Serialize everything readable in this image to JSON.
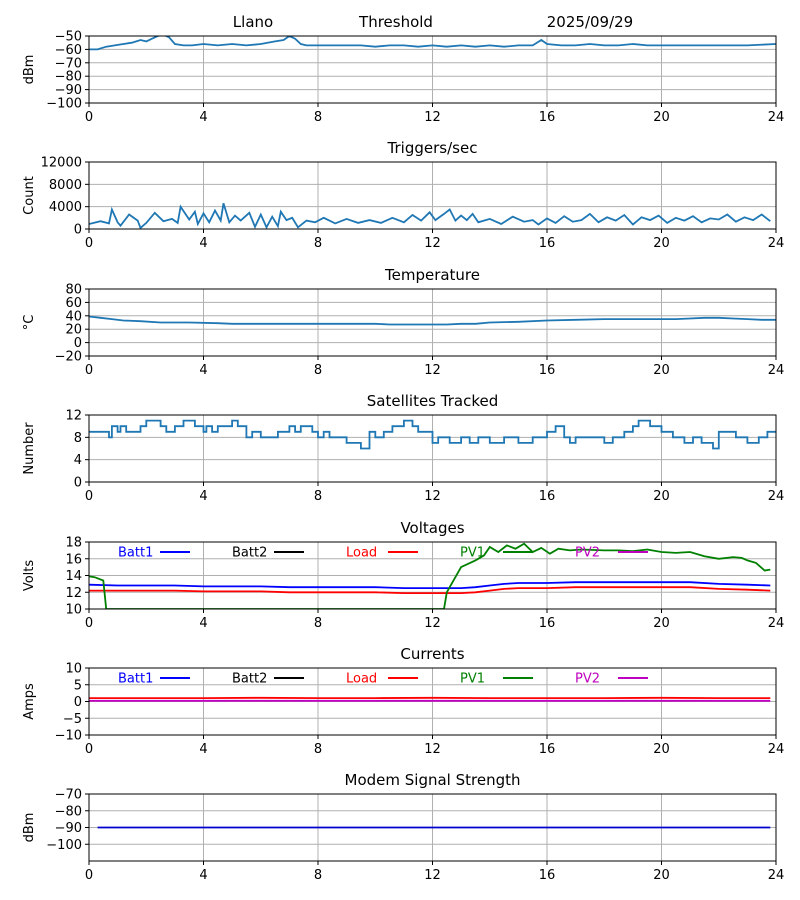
{
  "header": {
    "left": "Llano",
    "center": "Threshold",
    "right": "2025/09/29"
  },
  "x_ticks": [
    "0",
    "4",
    "8",
    "12",
    "16",
    "20",
    "24"
  ],
  "chart_data": [
    {
      "type": "line",
      "title": "",
      "ylabel": "dBm",
      "ylim": [
        -100,
        -50
      ],
      "yticks": [
        -100,
        -90,
        -80,
        -70,
        -60,
        -50
      ],
      "xlim": [
        0,
        24
      ],
      "series": [
        {
          "color": "#1f77b4",
          "x": [
            0,
            0.3,
            0.6,
            0.9,
            1.2,
            1.5,
            1.8,
            2.0,
            2.2,
            2.4,
            2.6,
            2.8,
            3.0,
            3.3,
            3.6,
            4.0,
            4.5,
            5.0,
            5.5,
            6.0,
            6.5,
            6.8,
            7.0,
            7.2,
            7.4,
            7.6,
            8.0,
            8.5,
            9,
            9.5,
            10,
            10.5,
            11,
            11.5,
            12,
            12.5,
            13,
            13.5,
            14,
            14.5,
            15,
            15.5,
            15.8,
            16,
            16.5,
            17,
            17.5,
            18,
            18.5,
            19,
            19.5,
            20,
            21,
            22,
            23,
            24
          ],
          "y": [
            -60,
            -60,
            -58,
            -57,
            -56,
            -55,
            -53,
            -54,
            -52,
            -50,
            -49,
            -51,
            -56,
            -57,
            -57,
            -56,
            -57,
            -56,
            -57,
            -56,
            -54,
            -53,
            -50,
            -52,
            -56,
            -57,
            -57,
            -57,
            -57,
            -57,
            -58,
            -57,
            -57,
            -58,
            -57,
            -58,
            -57,
            -58,
            -57,
            -58,
            -57,
            -57,
            -53,
            -56,
            -57,
            -57,
            -56,
            -57,
            -57,
            -56,
            -57,
            -57,
            -57,
            -57,
            -57,
            -56
          ]
        }
      ]
    },
    {
      "type": "line",
      "title": "Triggers/sec",
      "ylabel": "Count",
      "ylim": [
        0,
        12000
      ],
      "yticks": [
        0,
        4000,
        8000,
        12000
      ],
      "xlim": [
        0,
        24
      ],
      "series": [
        {
          "color": "#1f77b4",
          "x": [
            0,
            0.4,
            0.7,
            0.8,
            1.0,
            1.1,
            1.4,
            1.7,
            1.8,
            2.0,
            2.3,
            2.6,
            2.9,
            3.1,
            3.2,
            3.5,
            3.7,
            3.8,
            4.0,
            4.2,
            4.4,
            4.6,
            4.7,
            4.9,
            5.1,
            5.3,
            5.6,
            5.8,
            6.0,
            6.2,
            6.4,
            6.6,
            6.7,
            6.9,
            7.1,
            7.3,
            7.6,
            7.9,
            8.2,
            8.6,
            9.0,
            9.4,
            9.8,
            10.2,
            10.6,
            11.0,
            11.3,
            11.6,
            11.9,
            12.1,
            12.4,
            12.6,
            12.8,
            13.0,
            13.2,
            13.4,
            13.6,
            14.0,
            14.4,
            14.8,
            15.2,
            15.5,
            15.7,
            16.0,
            16.3,
            16.6,
            16.9,
            17.2,
            17.5,
            17.8,
            18.1,
            18.4,
            18.7,
            19.0,
            19.3,
            19.6,
            19.9,
            20.2,
            20.5,
            20.8,
            21.1,
            21.4,
            21.7,
            22.0,
            22.3,
            22.6,
            22.9,
            23.2,
            23.5,
            23.8
          ],
          "y": [
            900,
            1400,
            1000,
            3500,
            1200,
            600,
            2600,
            1500,
            200,
            1100,
            2900,
            1400,
            1800,
            1100,
            4000,
            1700,
            3100,
            900,
            2800,
            1200,
            3300,
            1500,
            4600,
            1200,
            2400,
            1500,
            2900,
            400,
            2600,
            300,
            2200,
            500,
            3100,
            1600,
            2000,
            300,
            1500,
            1200,
            2000,
            1000,
            1800,
            1100,
            1600,
            1100,
            2000,
            1200,
            2500,
            1500,
            3000,
            1600,
            2700,
            3500,
            1500,
            2400,
            1600,
            2700,
            1200,
            1800,
            900,
            2200,
            1300,
            1600,
            800,
            1900,
            1100,
            2300,
            1300,
            1600,
            2700,
            1200,
            2100,
            1500,
            2500,
            800,
            2100,
            1600,
            2400,
            1100,
            2000,
            1500,
            2300,
            1200,
            1900,
            1700,
            2600,
            1300,
            2100,
            1600,
            2600,
            1400
          ]
        }
      ]
    },
    {
      "type": "line",
      "title": "Temperature",
      "ylabel": "°C",
      "ylim": [
        -20,
        80
      ],
      "yticks": [
        -20,
        0,
        20,
        40,
        60,
        80
      ],
      "xlim": [
        0,
        24
      ],
      "series": [
        {
          "color": "#1f77b4",
          "x": [
            0,
            0.4,
            0.8,
            1.2,
            1.8,
            2.5,
            3.5,
            4.5,
            5,
            6,
            7,
            8,
            9,
            10,
            10.5,
            11,
            11.5,
            12,
            12.5,
            13,
            13.5,
            14,
            15,
            16,
            17,
            18,
            19,
            20,
            20.5,
            21,
            21.5,
            22,
            22.5,
            23,
            23.5,
            24
          ],
          "y": [
            39,
            37,
            35,
            33,
            32,
            30,
            30,
            29,
            28,
            28,
            28,
            28,
            28,
            28,
            27,
            27,
            27,
            27,
            27,
            28,
            28,
            30,
            31,
            33,
            34,
            35,
            35,
            35,
            35,
            36,
            37,
            37,
            36,
            35,
            34,
            34
          ]
        }
      ]
    },
    {
      "type": "line",
      "title": "Satellites Tracked",
      "ylabel": "Number",
      "ylim": [
        0,
        12
      ],
      "yticks": [
        0,
        4,
        8,
        12
      ],
      "xlim": [
        0,
        24
      ],
      "series": [
        {
          "color": "#1f77b4",
          "step": true,
          "x": [
            0,
            0.5,
            0.7,
            0.8,
            1.0,
            1.1,
            1.3,
            1.8,
            2.0,
            2.5,
            2.7,
            3.0,
            3.3,
            3.7,
            4.0,
            4.1,
            4.3,
            4.5,
            5.0,
            5.2,
            5.5,
            5.7,
            6.0,
            6.6,
            7.0,
            7.2,
            7.4,
            7.8,
            8.0,
            8.2,
            8.4,
            9.0,
            9.5,
            9.8,
            10.0,
            10.3,
            10.6,
            11.0,
            11.3,
            11.5,
            12.0,
            12.2,
            12.6,
            13.0,
            13.3,
            13.6,
            14.0,
            14.5,
            15.0,
            15.5,
            16.0,
            16.3,
            16.6,
            16.8,
            17.0,
            17.3,
            17.6,
            18.0,
            18.3,
            18.7,
            19.0,
            19.2,
            19.6,
            20.0,
            20.4,
            20.8,
            21.1,
            21.4,
            21.8,
            22.0,
            22.6,
            23.0,
            23.4,
            23.7,
            24
          ],
          "y": [
            9,
            9,
            8,
            10,
            9,
            10,
            9,
            10,
            11,
            10,
            9,
            10,
            11,
            10,
            9,
            10,
            9,
            10,
            11,
            10,
            8,
            9,
            8,
            9,
            10,
            9,
            10,
            9,
            8,
            9,
            8,
            7,
            6,
            9,
            8,
            9,
            10,
            11,
            10,
            9,
            7,
            8,
            7,
            8,
            7,
            8,
            7,
            8,
            7,
            8,
            9,
            10,
            8,
            7,
            8,
            8,
            8,
            7,
            8,
            9,
            10,
            11,
            10,
            9,
            8,
            7,
            8,
            7,
            6,
            9,
            8,
            7,
            8,
            9,
            9
          ]
        }
      ]
    },
    {
      "type": "line",
      "title": "Voltages",
      "ylabel": "Volts",
      "ylim": [
        10,
        18
      ],
      "yticks": [
        10,
        12,
        14,
        16,
        18
      ],
      "xlim": [
        0,
        24
      ],
      "legend": [
        "Batt1",
        "Batt2",
        "Load",
        "PV1",
        "PV2"
      ],
      "series": [
        {
          "name": "Batt1",
          "color": "#0000ff",
          "x": [
            0,
            1,
            2,
            3,
            4,
            5,
            6,
            7,
            8,
            9,
            10,
            11,
            12,
            12.5,
            13,
            13.5,
            14,
            14.5,
            15,
            15.5,
            16,
            17,
            18,
            19,
            20,
            21,
            22,
            23,
            23.8
          ],
          "y": [
            12.9,
            12.8,
            12.8,
            12.8,
            12.7,
            12.7,
            12.7,
            12.6,
            12.6,
            12.6,
            12.6,
            12.5,
            12.5,
            12.5,
            12.5,
            12.6,
            12.8,
            13.0,
            13.1,
            13.1,
            13.1,
            13.2,
            13.2,
            13.2,
            13.2,
            13.2,
            13.0,
            12.9,
            12.8
          ]
        },
        {
          "name": "Load",
          "color": "#ff0000",
          "x": [
            0,
            1,
            2,
            3,
            4,
            5,
            6,
            7,
            8,
            9,
            10,
            11,
            12,
            12.5,
            13,
            13.5,
            14,
            14.5,
            15,
            15.5,
            16,
            17,
            18,
            19,
            20,
            21,
            22,
            23,
            23.8
          ],
          "y": [
            12.2,
            12.2,
            12.2,
            12.2,
            12.1,
            12.1,
            12.1,
            12.0,
            12.0,
            12.0,
            12.0,
            11.9,
            11.9,
            11.9,
            11.9,
            12.0,
            12.2,
            12.4,
            12.5,
            12.5,
            12.5,
            12.6,
            12.6,
            12.6,
            12.6,
            12.6,
            12.4,
            12.3,
            12.2
          ]
        },
        {
          "name": "PV1",
          "color": "#008000",
          "x": [
            0,
            0.2,
            0.5,
            0.6,
            12.4,
            12.5,
            13.0,
            13.5,
            13.8,
            14.0,
            14.3,
            14.6,
            14.9,
            15.2,
            15.5,
            15.8,
            16.1,
            16.4,
            16.8,
            17.2,
            18,
            18.5,
            19,
            19.5,
            20,
            20.5,
            21,
            21.5,
            22,
            22.5,
            22.8,
            23.0,
            23.3,
            23.6,
            23.8
          ],
          "y": [
            13.9,
            13.8,
            13.4,
            10.0,
            10.0,
            12.0,
            15.0,
            15.8,
            16.4,
            17.4,
            16.8,
            17.6,
            17.2,
            17.8,
            16.8,
            17.3,
            16.6,
            17.2,
            17.0,
            17.1,
            17.0,
            17.0,
            16.9,
            17.1,
            16.8,
            16.7,
            16.8,
            16.3,
            16.0,
            16.2,
            16.1,
            15.8,
            15.5,
            14.6,
            14.7
          ]
        }
      ]
    },
    {
      "type": "line",
      "title": "Currents",
      "ylabel": "Amps",
      "ylim": [
        -10,
        10
      ],
      "yticks": [
        -10,
        -5,
        0,
        5,
        10
      ],
      "xlim": [
        0,
        24
      ],
      "legend": [
        "Batt1",
        "Batt2",
        "Load",
        "PV1",
        "PV2"
      ],
      "series": [
        {
          "name": "Load",
          "color": "#ff0000",
          "x": [
            0,
            2,
            4,
            6,
            8,
            10,
            12,
            14,
            16,
            18,
            20,
            22,
            23.8
          ],
          "y": [
            1.0,
            1.0,
            1.0,
            1.1,
            1.0,
            1.0,
            1.1,
            1.0,
            1.0,
            1.0,
            1.1,
            1.0,
            1.0
          ]
        },
        {
          "name": "PV2",
          "color": "#bf00bf",
          "x": [
            0,
            23.8
          ],
          "y": [
            0.2,
            0.2
          ]
        }
      ]
    },
    {
      "type": "line",
      "title": "Modem Signal Strength",
      "ylabel": "dBm",
      "ylim": [
        -110,
        -70
      ],
      "yticks": [
        -100,
        -90,
        -80,
        -70
      ],
      "xlim": [
        0,
        24
      ],
      "series": [
        {
          "color": "#0000cc",
          "x": [
            0.3,
            23.8
          ],
          "y": [
            -90,
            -90
          ]
        }
      ]
    }
  ],
  "legend_colors": {
    "Batt1": "#0000ff",
    "Batt2": "#000000",
    "Load": "#ff0000",
    "PV1": "#008000",
    "PV2": "#bf00bf"
  }
}
